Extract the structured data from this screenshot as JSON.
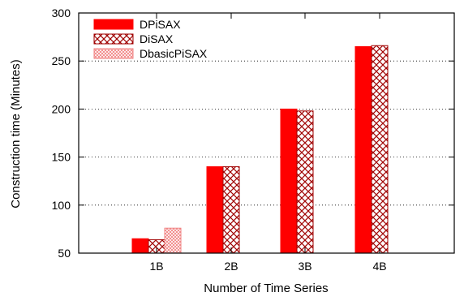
{
  "chart_data": {
    "type": "bar",
    "title": "",
    "xlabel": "Number of Time Series",
    "ylabel": "Construction time (Minutes)",
    "categories": [
      "1B",
      "2B",
      "3B",
      "4B"
    ],
    "ylim": [
      50,
      300
    ],
    "yticks": [
      "50",
      "100",
      "150",
      "200",
      "250",
      "300"
    ],
    "grid": "horizontal dotted",
    "legend_position": "top-left",
    "series": [
      {
        "name": "DPiSAX",
        "values": [
          65,
          140,
          200,
          265
        ],
        "color": "#ff0000",
        "pattern": "solid"
      },
      {
        "name": "DiSAX",
        "values": [
          64,
          140,
          198,
          266
        ],
        "color": "#a00000",
        "pattern": "crosshatch"
      },
      {
        "name": "DbasicPiSAX",
        "values": [
          76,
          null,
          null,
          null
        ],
        "color": "#f08080",
        "pattern": "fine-crosshatch"
      }
    ]
  }
}
